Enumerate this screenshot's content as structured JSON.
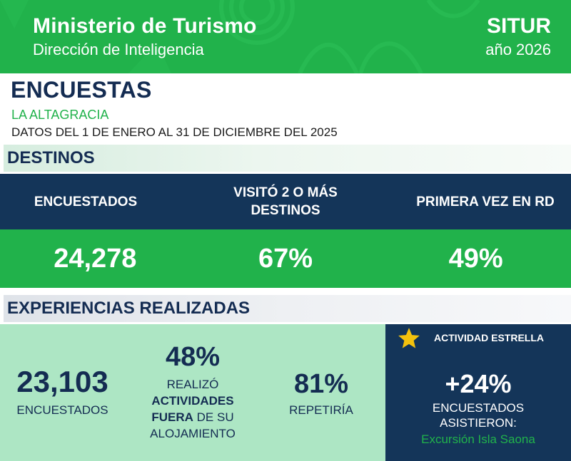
{
  "header": {
    "title": "Ministerio de Turismo",
    "subtitle": "Dirección de Inteligencia",
    "brand": "SITUR",
    "year": "año 2026",
    "background_color": "#21b24b"
  },
  "survey": {
    "title": "ENCUESTAS",
    "location": "LA ALTAGRACIA",
    "date_range": "DATOS DEL 1 DE ENERO AL 31 DE DICIEMBRE DEL 2025"
  },
  "destinos": {
    "section_title": "DESTINOS",
    "headers": [
      "ENCUESTADOS",
      "VISITÓ 2 O MÁS DESTINOS",
      "PRIMERA VEZ EN RD"
    ],
    "values": [
      "24,278",
      "67%",
      "49%"
    ]
  },
  "experiencias": {
    "section_title": "EXPERIENCIAS REALIZADAS",
    "respondents_value": "23,103",
    "respondents_label": "ENCUESTADOS",
    "activities_value": "48%",
    "activities_label_1": "REALIZÓ",
    "activities_label_2": "ACTIVIDADES",
    "activities_label_3": "FUERA",
    "activities_label_4": "DE SU",
    "activities_label_5": "ALOJAMIENTO",
    "repeat_value": "81%",
    "repeat_label": "REPETIRÍA"
  },
  "estrella": {
    "icon": "star-icon",
    "title": "ACTIVIDAD ESTRELLA",
    "value": "+24%",
    "label_line_1": "ENCUESTADOS",
    "label_line_2": "ASISTIERON:",
    "excursion": "Excursión Isla Saona"
  },
  "colors": {
    "green": "#21b24b",
    "navy": "#143559",
    "light_green": "#ade6c4",
    "star": "#f4c20d"
  }
}
